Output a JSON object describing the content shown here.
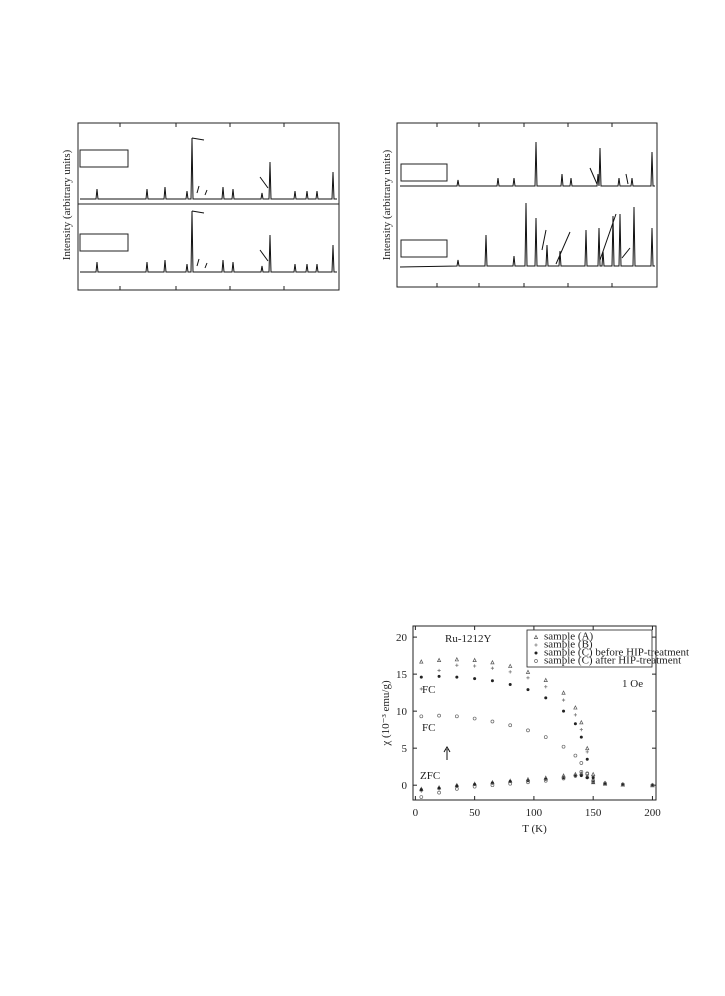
{
  "xrd_left": {
    "y_label": "Intensity (arbitrary units)"
  },
  "xrd_right": {
    "y_label": "Intensity (arbitrary units)"
  },
  "chart_data": {
    "type": "scatter",
    "title": "Ru-1212Y",
    "field_label": "1 Oe",
    "annotations": [
      "FC",
      "FC",
      "ZFC"
    ],
    "x_label": "T (K)",
    "y_label": "χ (10⁻³ emu/g)",
    "x": [
      5,
      20,
      35,
      50,
      65,
      80,
      95,
      110,
      125,
      135,
      140,
      145,
      150,
      160,
      175,
      200
    ],
    "series": [
      {
        "name": "sample (A)",
        "color": "#555555",
        "marker": "triangle",
        "values": [
          16.7,
          16.9,
          17,
          16.9,
          16.6,
          16.1,
          15.3,
          14.2,
          12.5,
          10.5,
          8.5,
          5,
          1.5,
          0.3,
          0.1,
          0
        ],
        "zfc_values": [
          -0.5,
          -0.3,
          0,
          0.2,
          0.4,
          0.6,
          0.8,
          1,
          1.3,
          1.5,
          1.6,
          1.2,
          0.4,
          0.2,
          0.1,
          0
        ]
      },
      {
        "name": "sample (B)",
        "color": "#777777",
        "marker": "plus",
        "values": [
          13,
          15.5,
          16.2,
          16.1,
          15.8,
          15.3,
          14.5,
          13.3,
          11.5,
          9.5,
          7.5,
          4.5,
          1.2,
          0.3,
          0.1,
          0
        ],
        "zfc_values": [
          -0.8,
          -0.5,
          -0.2,
          0.1,
          0.3,
          0.5,
          0.7,
          0.9,
          1.2,
          1.4,
          1.5,
          1.1,
          0.4,
          0.2,
          0.1,
          0
        ]
      },
      {
        "name": "sample (C) before HIP-treatment",
        "color": "#222222",
        "marker": "filled-circle",
        "values": [
          14.6,
          14.7,
          14.6,
          14.4,
          14.1,
          13.6,
          12.9,
          11.8,
          10,
          8.3,
          6.5,
          3.5,
          1,
          0.3,
          0.1,
          0
        ],
        "zfc_values": [
          -0.6,
          -0.4,
          -0.1,
          0.1,
          0.3,
          0.5,
          0.6,
          0.8,
          1,
          1.2,
          1.3,
          1,
          0.4,
          0.2,
          0.1,
          0
        ]
      },
      {
        "name": "sample (C) after HIP-treatment",
        "color": "#666666",
        "marker": "open-circle",
        "values": [
          9.3,
          9.4,
          9.3,
          9,
          8.6,
          8.1,
          7.4,
          6.5,
          5.2,
          4,
          3,
          1.5,
          0.5,
          0.2,
          0.1,
          0
        ],
        "zfc_values": [
          -1.6,
          -1,
          -0.5,
          -0.2,
          0,
          0.2,
          0.4,
          0.6,
          0.9,
          1.3,
          1.8,
          1.6,
          0.6,
          0.2,
          0.1,
          0
        ]
      }
    ],
    "xlim": [
      -2,
      203
    ],
    "ylim": [
      -2,
      21.5
    ],
    "xticks": [
      0,
      50,
      100,
      150,
      200
    ],
    "yticks": [
      0,
      5,
      10,
      15,
      20
    ],
    "legend": "upper right"
  }
}
